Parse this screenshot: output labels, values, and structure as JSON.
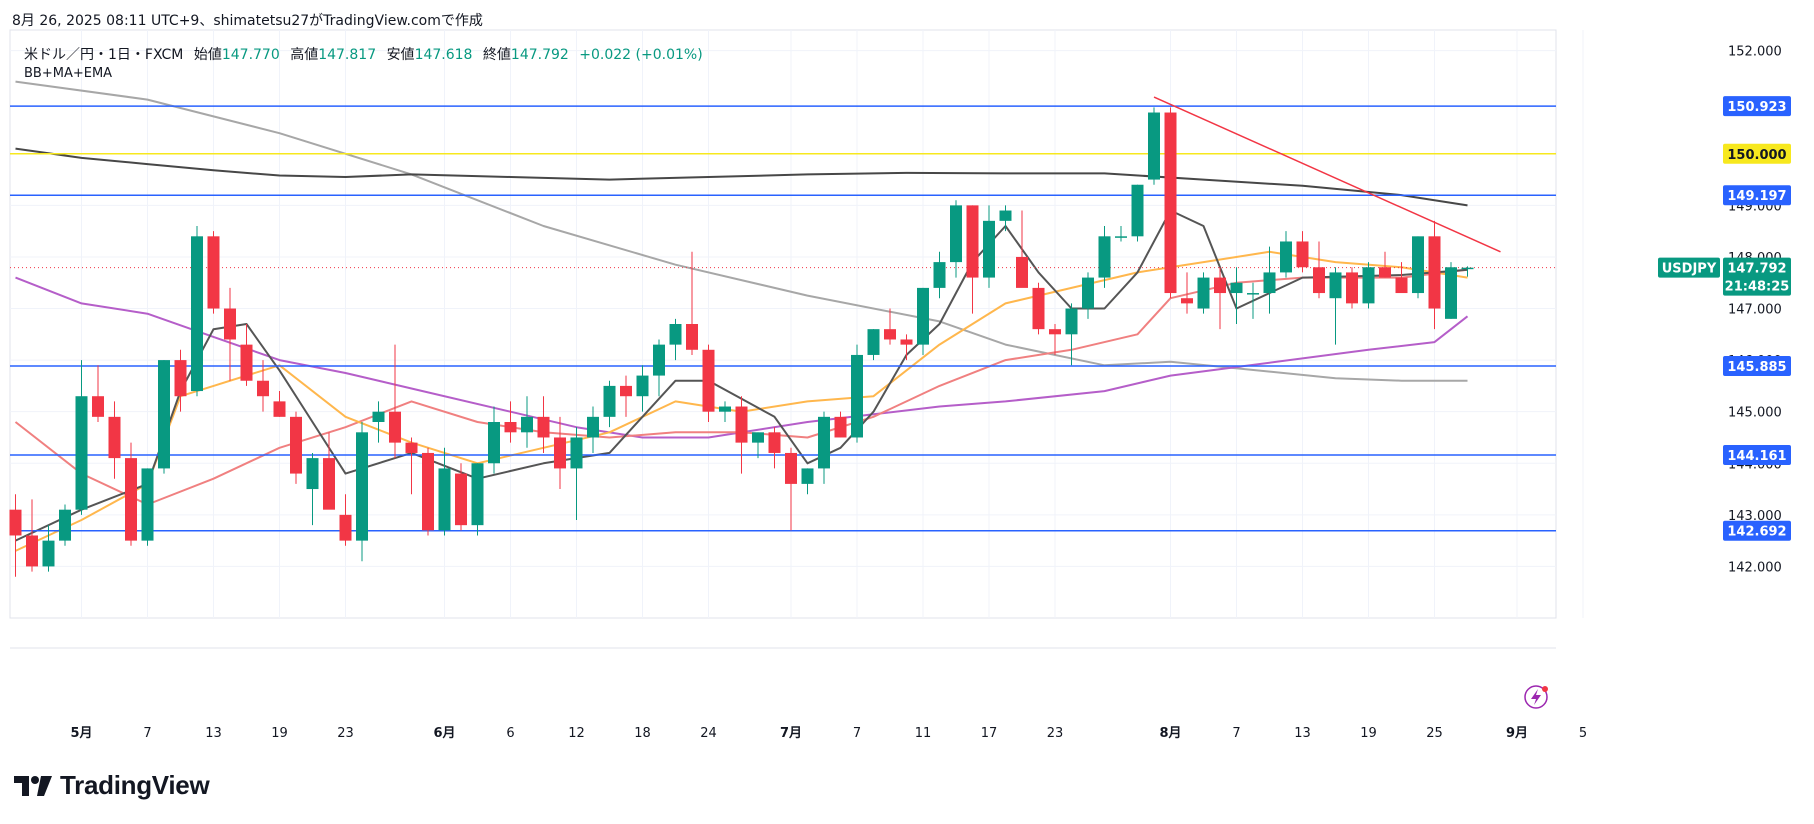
{
  "header": {
    "text": "8月 26, 2025 08:11 UTC+9、shimatetsu27がTradingView.comで作成"
  },
  "legend": {
    "symbol": "米ドル／円・1日・FXCM",
    "open_label": "始値",
    "open": "147.770",
    "high_label": "高値",
    "high": "147.817",
    "low_label": "安値",
    "low": "147.618",
    "close_label": "終値",
    "close": "147.792",
    "change": "+0.022 (+0.01%)"
  },
  "indicators": "BB+MA+EMA",
  "footer": {
    "brand": "TradingView"
  },
  "colors": {
    "up": "#089981",
    "down": "#f23645",
    "hline": "#2962ff",
    "yellow": "#f7e81e",
    "trend": "#f23645",
    "bb_upper": "#474747",
    "ma_purple": "#b55ec9",
    "ma_gray": "#a7a7a7",
    "ema_orange": "#ffb74d",
    "ema_pink": "#f08080",
    "ma_dark": "#555555"
  },
  "chart_data": {
    "type": "candlestick",
    "symbol": "USDJPY",
    "timeframe": "1D",
    "ylim": [
      141.0,
      152.4
    ],
    "y_ticks": [
      142.0,
      143.0,
      144.0,
      145.0,
      146.0,
      147.0,
      148.0,
      149.0,
      152.0
    ],
    "y_tick_labels": [
      "142.000",
      "143.000",
      "144.000",
      "145.000",
      "146.000",
      "147.000",
      "148.000",
      "149.000",
      "152.000"
    ],
    "x_ticks": [
      {
        "label": "5月",
        "bold": true,
        "idx": 4
      },
      {
        "label": "7",
        "idx": 8
      },
      {
        "label": "13",
        "idx": 12
      },
      {
        "label": "19",
        "idx": 16
      },
      {
        "label": "23",
        "idx": 20
      },
      {
        "label": "6月",
        "bold": true,
        "idx": 26
      },
      {
        "label": "6",
        "idx": 30
      },
      {
        "label": "12",
        "idx": 34
      },
      {
        "label": "18",
        "idx": 38
      },
      {
        "label": "24",
        "idx": 42
      },
      {
        "label": "7月",
        "bold": true,
        "idx": 47
      },
      {
        "label": "7",
        "idx": 51
      },
      {
        "label": "11",
        "idx": 55
      },
      {
        "label": "17",
        "idx": 59
      },
      {
        "label": "23",
        "idx": 63
      },
      {
        "label": "8月",
        "bold": true,
        "idx": 70
      },
      {
        "label": "7",
        "idx": 74
      },
      {
        "label": "13",
        "idx": 78
      },
      {
        "label": "19",
        "idx": 82
      },
      {
        "label": "25",
        "idx": 86
      },
      {
        "label": "9月",
        "bold": true,
        "idx": 91
      },
      {
        "label": "5",
        "idx": 95
      }
    ],
    "candles": [
      [
        143.1,
        143.4,
        141.8,
        142.6
      ],
      [
        142.6,
        143.3,
        141.9,
        142.0
      ],
      [
        142.0,
        142.8,
        141.9,
        142.5
      ],
      [
        142.5,
        143.2,
        142.4,
        143.1
      ],
      [
        143.1,
        146.0,
        143.0,
        145.3
      ],
      [
        145.3,
        145.9,
        144.8,
        144.9
      ],
      [
        144.9,
        145.2,
        143.7,
        144.1
      ],
      [
        144.1,
        144.4,
        142.4,
        142.5
      ],
      [
        142.5,
        143.9,
        142.4,
        143.9
      ],
      [
        143.9,
        146.0,
        143.8,
        146.0
      ],
      [
        146.0,
        146.2,
        145.0,
        145.3
      ],
      [
        145.4,
        148.6,
        145.3,
        148.4
      ],
      [
        148.4,
        148.5,
        146.9,
        147.0
      ],
      [
        147.0,
        147.4,
        145.6,
        146.4
      ],
      [
        146.3,
        146.7,
        145.5,
        145.6
      ],
      [
        145.6,
        146.0,
        145.0,
        145.3
      ],
      [
        145.2,
        145.4,
        144.9,
        144.9
      ],
      [
        144.9,
        145.0,
        143.6,
        143.8
      ],
      [
        143.5,
        144.2,
        142.8,
        144.1
      ],
      [
        144.1,
        144.6,
        143.2,
        143.1
      ],
      [
        143.0,
        143.4,
        142.4,
        142.5
      ],
      [
        142.5,
        144.8,
        142.1,
        144.6
      ],
      [
        144.8,
        145.2,
        144.4,
        145.0
      ],
      [
        145.0,
        146.3,
        144.1,
        144.4
      ],
      [
        144.4,
        144.5,
        143.4,
        144.2
      ],
      [
        144.2,
        144.3,
        142.6,
        142.7
      ],
      [
        142.7,
        144.3,
        142.6,
        143.9
      ],
      [
        143.8,
        144.0,
        142.7,
        142.8
      ],
      [
        142.8,
        144.0,
        142.6,
        144.0
      ],
      [
        144.0,
        145.1,
        143.8,
        144.8
      ],
      [
        144.8,
        145.2,
        144.4,
        144.6
      ],
      [
        144.6,
        145.3,
        144.3,
        144.9
      ],
      [
        144.9,
        145.3,
        144.2,
        144.5
      ],
      [
        144.5,
        144.9,
        143.5,
        143.9
      ],
      [
        143.9,
        144.7,
        142.9,
        144.5
      ],
      [
        144.5,
        145.1,
        144.2,
        144.9
      ],
      [
        144.9,
        145.6,
        144.7,
        145.5
      ],
      [
        145.5,
        145.7,
        144.9,
        145.3
      ],
      [
        145.3,
        145.9,
        145.0,
        145.7
      ],
      [
        145.7,
        146.4,
        145.3,
        146.3
      ],
      [
        146.3,
        146.8,
        146.0,
        146.7
      ],
      [
        146.7,
        148.1,
        146.1,
        146.2
      ],
      [
        146.2,
        146.3,
        144.8,
        145.0
      ],
      [
        145.0,
        145.2,
        144.8,
        145.1
      ],
      [
        145.1,
        145.3,
        143.8,
        144.4
      ],
      [
        144.4,
        144.6,
        144.1,
        144.6
      ],
      [
        144.6,
        144.7,
        143.9,
        144.2
      ],
      [
        144.2,
        144.3,
        142.7,
        143.6
      ],
      [
        143.6,
        143.9,
        143.4,
        143.9
      ],
      [
        143.9,
        145.0,
        143.6,
        144.9
      ],
      [
        144.9,
        145.0,
        144.5,
        144.5
      ],
      [
        144.5,
        146.3,
        144.4,
        146.1
      ],
      [
        146.1,
        146.6,
        146.0,
        146.6
      ],
      [
        146.6,
        147.0,
        146.3,
        146.4
      ],
      [
        146.4,
        146.5,
        146.0,
        146.3
      ],
      [
        146.3,
        147.4,
        146.1,
        147.4
      ],
      [
        147.4,
        148.1,
        147.2,
        147.9
      ],
      [
        147.9,
        149.1,
        147.6,
        149.0
      ],
      [
        149.0,
        149.0,
        146.9,
        147.6
      ],
      [
        147.6,
        149.0,
        147.4,
        148.7
      ],
      [
        148.7,
        149.0,
        148.5,
        148.9
      ],
      [
        148.0,
        148.9,
        147.5,
        147.4
      ],
      [
        147.4,
        147.5,
        146.5,
        146.6
      ],
      [
        146.6,
        146.7,
        146.1,
        146.5
      ],
      [
        146.5,
        147.1,
        145.9,
        147.0
      ],
      [
        147.0,
        147.7,
        146.8,
        147.6
      ],
      [
        147.6,
        148.6,
        147.4,
        148.4
      ],
      [
        148.4,
        148.6,
        148.3,
        148.4
      ],
      [
        148.4,
        149.4,
        148.3,
        149.4
      ],
      [
        149.5,
        150.9,
        149.4,
        150.8
      ],
      [
        150.8,
        150.9,
        147.2,
        147.3
      ],
      [
        147.2,
        147.7,
        146.9,
        147.1
      ],
      [
        147.0,
        147.7,
        146.9,
        147.6
      ],
      [
        147.6,
        147.8,
        146.6,
        147.3
      ],
      [
        147.3,
        147.8,
        146.7,
        147.5
      ],
      [
        147.3,
        147.5,
        146.8,
        147.3
      ],
      [
        147.3,
        148.2,
        146.9,
        147.7
      ],
      [
        147.7,
        148.5,
        147.6,
        148.3
      ],
      [
        148.3,
        148.5,
        147.7,
        147.8
      ],
      [
        147.8,
        148.3,
        147.2,
        147.3
      ],
      [
        147.2,
        147.8,
        146.3,
        147.7
      ],
      [
        147.7,
        147.8,
        147.0,
        147.1
      ],
      [
        147.1,
        147.9,
        147.0,
        147.8
      ],
      [
        147.8,
        148.1,
        147.6,
        147.6
      ],
      [
        147.6,
        147.9,
        147.3,
        147.3
      ],
      [
        147.3,
        148.4,
        147.2,
        148.4
      ],
      [
        148.4,
        148.7,
        146.6,
        147.0
      ],
      [
        146.8,
        147.9,
        146.8,
        147.8
      ],
      [
        147.77,
        147.817,
        147.618,
        147.792
      ]
    ],
    "bb_upper": [
      [
        0,
        150.1
      ],
      [
        4,
        149.92
      ],
      [
        8,
        149.8
      ],
      [
        12,
        149.68
      ],
      [
        16,
        149.58
      ],
      [
        20,
        149.55
      ],
      [
        24,
        149.6
      ],
      [
        30,
        149.55
      ],
      [
        36,
        149.5
      ],
      [
        42,
        149.55
      ],
      [
        48,
        149.6
      ],
      [
        54,
        149.63
      ],
      [
        60,
        149.62
      ],
      [
        66,
        149.62
      ],
      [
        72,
        149.5
      ],
      [
        78,
        149.38
      ],
      [
        84,
        149.2
      ],
      [
        88,
        149.0
      ]
    ],
    "ma_gray": [
      [
        0,
        151.4
      ],
      [
        8,
        151.05
      ],
      [
        16,
        150.4
      ],
      [
        24,
        149.6
      ],
      [
        32,
        148.6
      ],
      [
        40,
        147.85
      ],
      [
        48,
        147.25
      ],
      [
        56,
        146.75
      ],
      [
        60,
        146.3
      ],
      [
        66,
        145.9
      ],
      [
        70,
        145.97
      ],
      [
        80,
        145.65
      ],
      [
        84,
        145.6
      ],
      [
        88,
        145.6
      ]
    ],
    "ma_purple": [
      [
        0,
        147.6
      ],
      [
        4,
        147.1
      ],
      [
        8,
        146.9
      ],
      [
        12,
        146.45
      ],
      [
        16,
        146.0
      ],
      [
        20,
        145.75
      ],
      [
        24,
        145.45
      ],
      [
        30,
        145.0
      ],
      [
        34,
        144.7
      ],
      [
        38,
        144.5
      ],
      [
        42,
        144.5
      ],
      [
        48,
        144.8
      ],
      [
        52,
        144.95
      ],
      [
        56,
        145.1
      ],
      [
        60,
        145.2
      ],
      [
        66,
        145.4
      ],
      [
        70,
        145.7
      ],
      [
        76,
        145.95
      ],
      [
        82,
        146.2
      ],
      [
        86,
        146.35
      ],
      [
        88,
        146.85
      ]
    ],
    "ema_pink": [
      [
        0,
        144.8
      ],
      [
        4,
        143.8
      ],
      [
        8,
        143.2
      ],
      [
        12,
        143.7
      ],
      [
        16,
        144.3
      ],
      [
        20,
        144.7
      ],
      [
        24,
        145.2
      ],
      [
        28,
        144.8
      ],
      [
        32,
        144.6
      ],
      [
        36,
        144.5
      ],
      [
        40,
        144.6
      ],
      [
        44,
        144.6
      ],
      [
        48,
        144.5
      ],
      [
        52,
        144.9
      ],
      [
        56,
        145.5
      ],
      [
        60,
        146.0
      ],
      [
        64,
        146.2
      ],
      [
        68,
        146.5
      ],
      [
        70,
        147.2
      ],
      [
        74,
        147.5
      ],
      [
        78,
        147.6
      ],
      [
        84,
        147.6
      ],
      [
        88,
        147.75
      ]
    ],
    "ema_orange": [
      [
        0,
        142.3
      ],
      [
        4,
        142.9
      ],
      [
        8,
        143.6
      ],
      [
        10,
        145.3
      ],
      [
        12,
        145.5
      ],
      [
        16,
        145.9
      ],
      [
        20,
        144.9
      ],
      [
        24,
        144.4
      ],
      [
        28,
        144.0
      ],
      [
        32,
        144.3
      ],
      [
        36,
        144.6
      ],
      [
        40,
        145.2
      ],
      [
        44,
        145.0
      ],
      [
        48,
        145.2
      ],
      [
        52,
        145.3
      ],
      [
        56,
        146.3
      ],
      [
        60,
        147.1
      ],
      [
        64,
        147.4
      ],
      [
        68,
        147.7
      ],
      [
        72,
        147.9
      ],
      [
        76,
        148.1
      ],
      [
        80,
        147.9
      ],
      [
        84,
        147.8
      ],
      [
        88,
        147.6
      ]
    ],
    "ma_dark": [
      [
        0,
        142.5
      ],
      [
        4,
        143.1
      ],
      [
        8,
        143.6
      ],
      [
        10,
        145.4
      ],
      [
        12,
        146.6
      ],
      [
        14,
        146.7
      ],
      [
        16,
        145.8
      ],
      [
        18,
        144.8
      ],
      [
        20,
        143.8
      ],
      [
        24,
        144.2
      ],
      [
        28,
        143.7
      ],
      [
        32,
        144.0
      ],
      [
        36,
        144.2
      ],
      [
        40,
        145.6
      ],
      [
        42,
        145.6
      ],
      [
        46,
        144.9
      ],
      [
        48,
        144.0
      ],
      [
        50,
        144.3
      ],
      [
        52,
        145.0
      ],
      [
        54,
        146.1
      ],
      [
        56,
        146.7
      ],
      [
        58,
        147.9
      ],
      [
        60,
        148.6
      ],
      [
        62,
        147.7
      ],
      [
        64,
        147.0
      ],
      [
        66,
        147.0
      ],
      [
        68,
        147.7
      ],
      [
        70,
        148.9
      ],
      [
        72,
        148.6
      ],
      [
        74,
        147.0
      ],
      [
        78,
        147.6
      ],
      [
        84,
        147.65
      ],
      [
        88,
        147.75
      ]
    ],
    "horizontal_lines": [
      {
        "price": 150.923,
        "label": "150.923",
        "color": "#2962ff"
      },
      {
        "price": 150.0,
        "label": "150.000",
        "color": "#f7e81e"
      },
      {
        "price": 149.197,
        "label": "149.197",
        "color": "#2962ff"
      },
      {
        "price": 145.885,
        "label": "145.885",
        "color": "#2962ff"
      },
      {
        "price": 144.161,
        "label": "144.161",
        "color": "#2962ff"
      },
      {
        "price": 142.692,
        "label": "142.692",
        "color": "#2962ff"
      }
    ],
    "trendline": {
      "from": [
        69,
        151.1
      ],
      "to": [
        90,
        148.1
      ]
    },
    "last_price": {
      "symbol_label": "USDJPY",
      "price": "147.792",
      "countdown": "21:48:25",
      "value": 147.792
    }
  }
}
